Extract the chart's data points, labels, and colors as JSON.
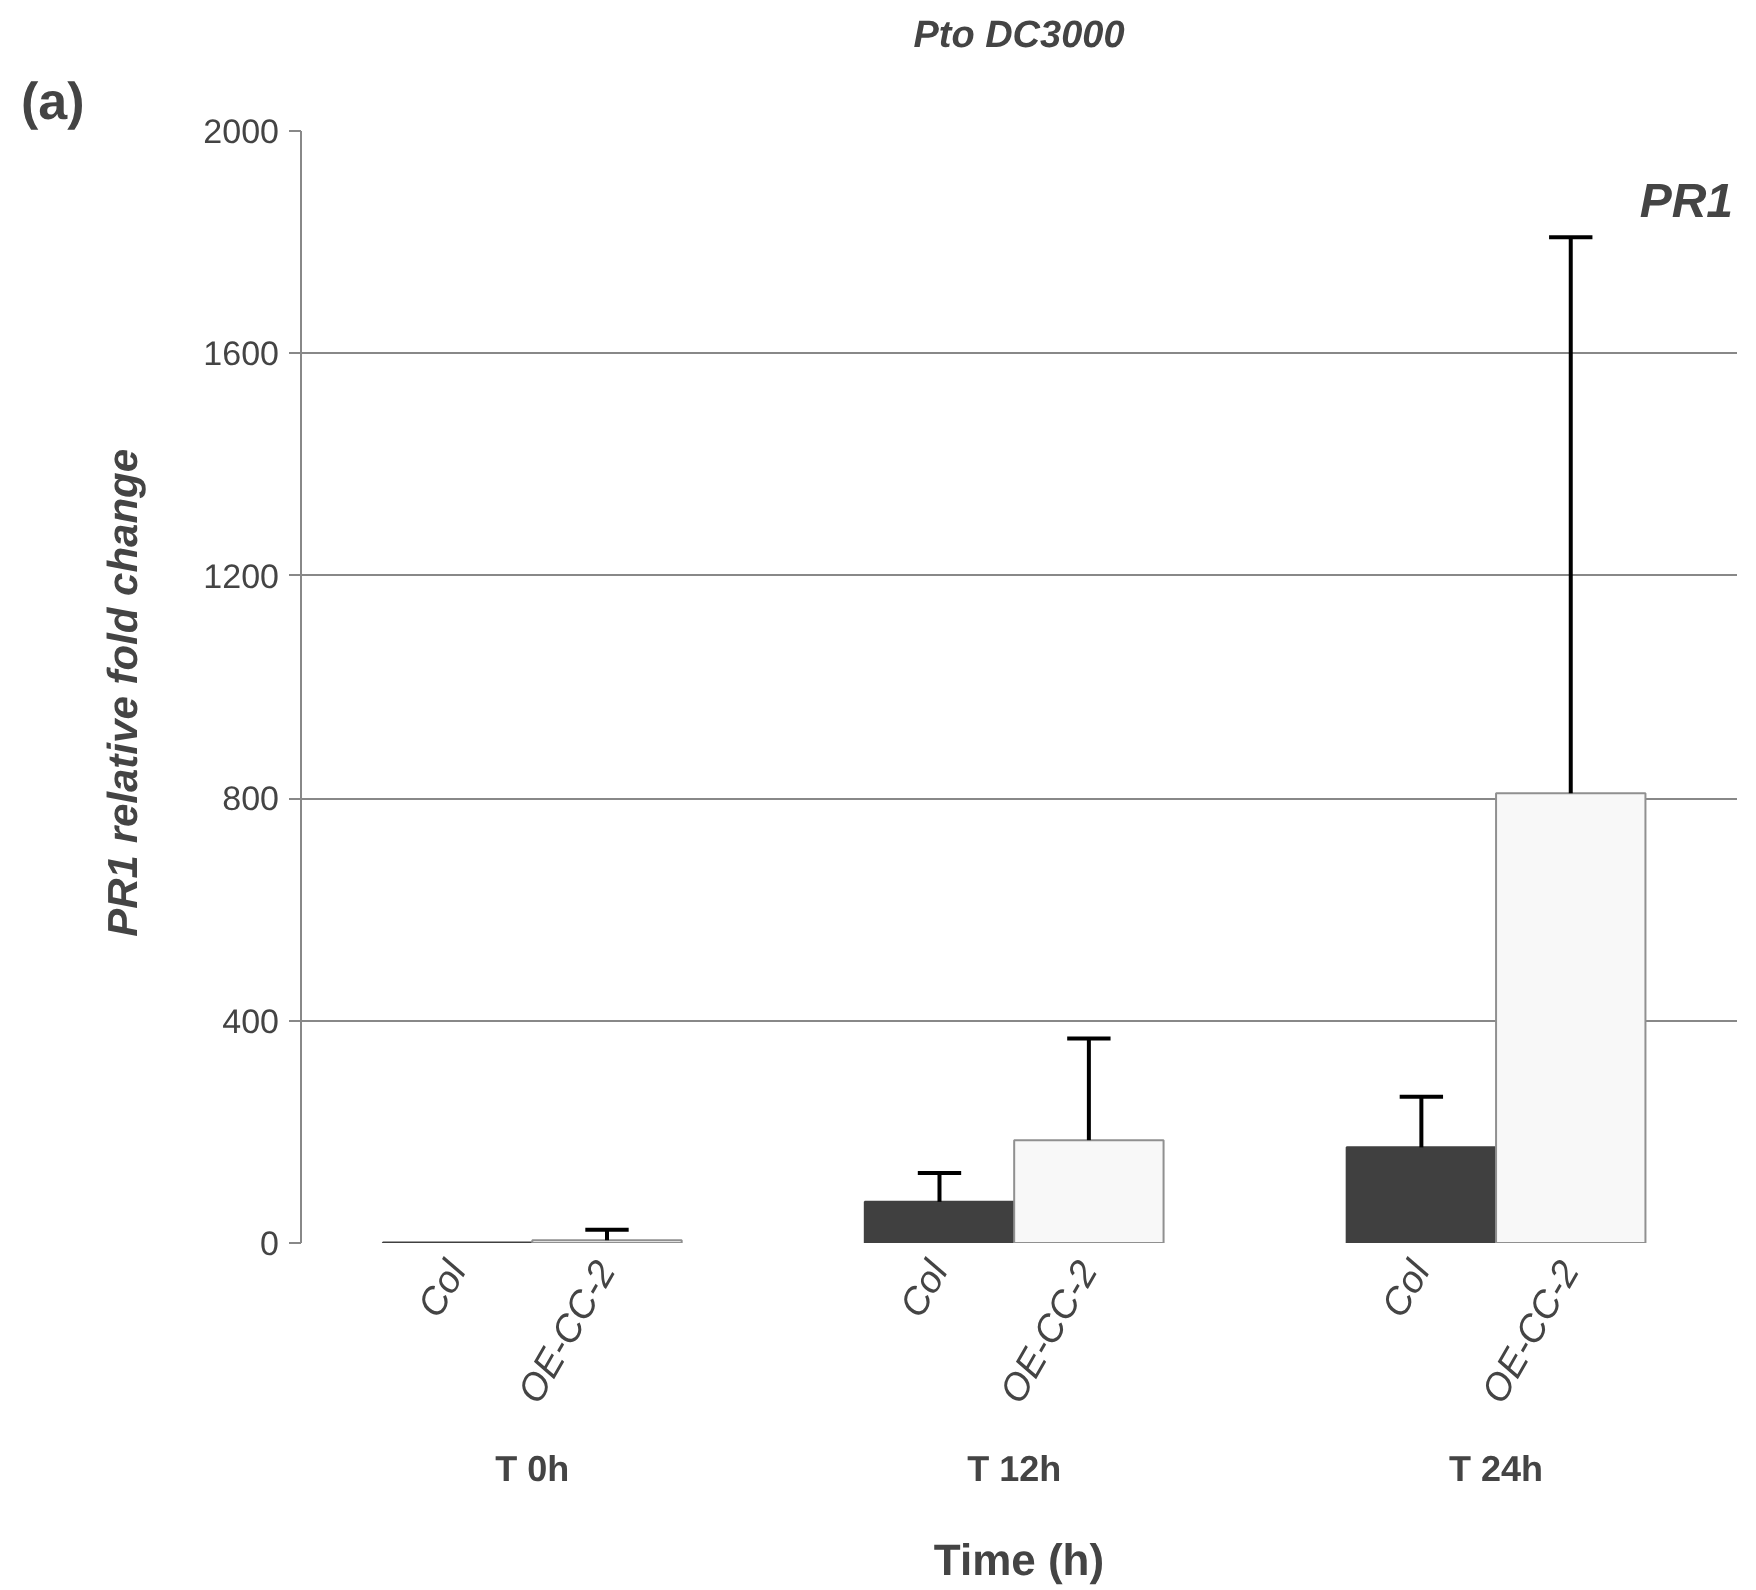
{
  "chart_data": {
    "type": "bar",
    "title": "Pto DC3000",
    "xlabel": "Time (h)",
    "ylabel": "PR1  relative fold change",
    "categories": [
      "T 0h",
      "T 12h",
      "T 24h"
    ],
    "series": [
      {
        "name": "Col",
        "color": "#404040",
        "values": [
          1,
          74,
          172
        ],
        "errors": [
          null,
          [
            74,
            126
          ],
          [
            172,
            263
          ]
        ]
      },
      {
        "name": "OE-CC-2",
        "color": "#f8f8f8",
        "values": [
          5,
          185,
          809
        ],
        "errors": [
          [
            5,
            24
          ],
          [
            185,
            368
          ],
          [
            809,
            1809
          ]
        ]
      }
    ],
    "ylim": [
      0,
      2000
    ],
    "yticks": [
      0,
      400,
      800,
      1200,
      1600,
      2000
    ],
    "grid": "y",
    "annotations": [
      "(a)",
      "PR1"
    ]
  }
}
